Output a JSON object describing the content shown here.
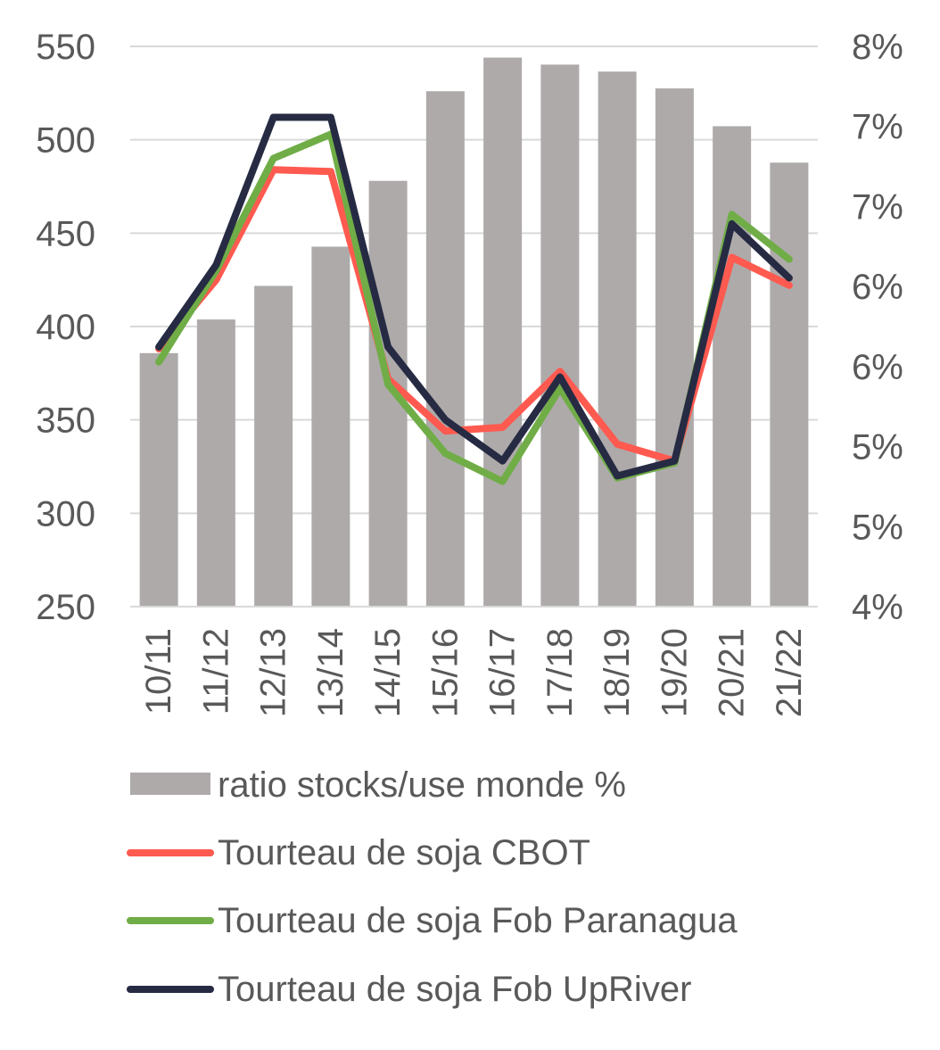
{
  "chart_data": {
    "type": "bar",
    "categories": [
      "10/11",
      "11/12",
      "12/13",
      "13/14",
      "14/15",
      "15/16",
      "16/17",
      "17/18",
      "18/19",
      "19/20",
      "20/21",
      "21/22"
    ],
    "left_axis": {
      "ylim": [
        250,
        550
      ],
      "ticks": [
        250,
        300,
        350,
        400,
        450,
        500,
        550
      ],
      "tick_labels": [
        "250",
        "300",
        "350",
        "400",
        "450",
        "500",
        "550"
      ]
    },
    "right_axis": {
      "ylim": [
        4,
        8
      ],
      "tick_labels": [
        "4%",
        "5%",
        "5%",
        "6%",
        "6%",
        "7%",
        "7%",
        "8%"
      ]
    },
    "bar_series": {
      "name": "ratio stocks/use monde %",
      "axis": "right",
      "color": "#aeaaaa",
      "values": [
        5.81,
        6.05,
        6.29,
        6.57,
        7.04,
        7.68,
        7.92,
        7.87,
        7.82,
        7.7,
        7.43,
        7.17
      ]
    },
    "series": [
      {
        "name": "Tourteau de soja CBOT",
        "axis": "left",
        "color": "#ff5a50",
        "values": [
          388,
          425,
          484,
          483,
          372,
          344,
          346,
          376,
          337,
          328,
          437,
          422
        ]
      },
      {
        "name": "Tourteau de soja Fob Paranagua",
        "axis": "left",
        "color": "#70ad47",
        "values": [
          381,
          430,
          490,
          503,
          369,
          332,
          317,
          367,
          319,
          327,
          460,
          436
        ]
      },
      {
        "name": "Tourteau de soja Fob UpRiver",
        "axis": "left",
        "color": "#262b43",
        "values": [
          389,
          433,
          512,
          512,
          389,
          350,
          328,
          373,
          320,
          328,
          455,
          426
        ]
      }
    ],
    "grid": true,
    "legend_position": "bottom"
  },
  "legend": {
    "bar_label": "ratio stocks/use monde %",
    "line1_label": "Tourteau de soja CBOT",
    "line2_label": "Tourteau de soja Fob Paranagua",
    "line3_label": "Tourteau de soja Fob UpRiver"
  }
}
